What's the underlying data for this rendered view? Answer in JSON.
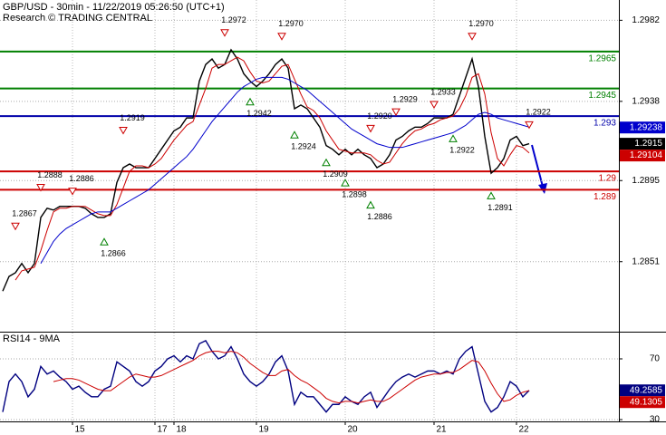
{
  "chart_data": [
    {
      "type": "line",
      "title": "GBP/USD - 30min - 11/22/2019 05:26:50 (UTC+1)",
      "subtitle": "Research © TRADING CENTRAL",
      "ylim": [
        1.2813,
        1.2993
      ],
      "yticks": [
        1.2851,
        1.2895,
        1.2938,
        1.2982
      ],
      "grid": true,
      "series": [
        {
          "color": "#000000",
          "values": [
            1.2835,
            1.2843,
            1.2845,
            1.285,
            1.2845,
            1.285,
            1.2875,
            1.288,
            1.2879,
            1.2881,
            1.2881,
            1.2881,
            1.2881,
            1.288,
            1.2877,
            1.2875,
            1.2875,
            1.2877,
            1.2894,
            1.2902,
            1.2904,
            1.2902,
            1.2902,
            1.2902,
            1.2907,
            1.2912,
            1.2917,
            1.2922,
            1.2924,
            1.2929,
            1.2929,
            1.2949,
            1.2958,
            1.2961,
            1.2956,
            1.2958,
            1.2966,
            1.2961,
            1.2953,
            1.2949,
            1.2946,
            1.2949,
            1.2953,
            1.2958,
            1.2961,
            1.2956,
            1.2934,
            1.2936,
            1.2934,
            1.2929,
            1.2924,
            1.2914,
            1.2912,
            1.2909,
            1.2912,
            1.2909,
            1.2912,
            1.2909,
            1.2907,
            1.2902,
            1.2904,
            1.2909,
            1.2917,
            1.2919,
            1.2922,
            1.2924,
            1.2924,
            1.2926,
            1.2929,
            1.2929,
            1.2929,
            1.2931,
            1.2941,
            1.2951,
            1.2961,
            1.2946,
            1.2919,
            1.2899,
            1.2902,
            1.2907,
            1.2917,
            1.2919,
            1.2914,
            1.2915
          ]
        },
        {
          "color": "#cc0000",
          "values": [
            null,
            null,
            1.2841,
            1.2846,
            1.2847,
            1.2848,
            1.2857,
            1.2868,
            1.2878,
            1.288,
            1.288,
            1.2881,
            1.2881,
            1.2881,
            1.2879,
            1.2877,
            1.2876,
            1.2876,
            1.2882,
            1.2891,
            1.29,
            1.2903,
            1.2903,
            1.2902,
            1.2904,
            1.2907,
            1.2912,
            1.2917,
            1.2921,
            1.2925,
            1.2927,
            1.2936,
            1.2945,
            1.2956,
            1.2958,
            1.2958,
            1.296,
            1.2962,
            1.296,
            1.2954,
            1.2949,
            1.2948,
            1.2949,
            1.2953,
            1.2957,
            1.2958,
            1.295,
            1.2942,
            1.2935,
            1.2933,
            1.2929,
            1.2922,
            1.2917,
            1.2912,
            1.2911,
            1.291,
            1.291,
            1.291,
            1.2909,
            1.2906,
            1.2904,
            1.2905,
            1.291,
            1.2915,
            1.2919,
            1.2922,
            1.2923,
            1.2925,
            1.2926,
            1.2928,
            1.2929,
            1.293,
            1.2934,
            1.2941,
            1.2951,
            1.2953,
            1.2942,
            1.2921,
            1.2907,
            1.2903,
            1.2909,
            1.2914,
            1.2913,
            1.291
          ]
        },
        {
          "color": "#0000cc",
          "values": [
            null,
            null,
            null,
            null,
            null,
            null,
            1.285,
            1.2856,
            1.2862,
            1.2866,
            1.2869,
            1.2871,
            1.2873,
            1.2875,
            1.2877,
            1.2878,
            1.2878,
            1.2878,
            1.288,
            1.2882,
            1.2884,
            1.2886,
            1.2888,
            1.289,
            1.2893,
            1.2896,
            1.2899,
            1.2902,
            1.2905,
            1.2908,
            1.2912,
            1.2917,
            1.2922,
            1.2927,
            1.2931,
            1.2935,
            1.2939,
            1.2943,
            1.2946,
            1.2948,
            1.295,
            1.2951,
            1.2951,
            1.2951,
            1.2951,
            1.295,
            1.2948,
            1.2946,
            1.2944,
            1.2941,
            1.2938,
            1.2935,
            1.2932,
            1.2929,
            1.2926,
            1.2923,
            1.2921,
            1.2919,
            1.2917,
            1.2915,
            1.2914,
            1.2913,
            1.2913,
            1.2913,
            1.2914,
            1.2915,
            1.2916,
            1.2917,
            1.2918,
            1.2919,
            1.292,
            1.2921,
            1.2923,
            1.2925,
            1.2928,
            1.2931,
            1.2932,
            1.2931,
            1.2929,
            1.2928,
            1.2927,
            1.2926,
            1.2925,
            1.2924
          ]
        }
      ],
      "levels": [
        {
          "value": 1.2965,
          "color": "#008000"
        },
        {
          "value": 1.2945,
          "color": "#008000"
        },
        {
          "value": 1.293,
          "color": "#0000aa"
        },
        {
          "value": 1.29,
          "color": "#cc0000"
        },
        {
          "value": 1.289,
          "color": "#cc0000"
        }
      ],
      "price_tags": [
        {
          "value": 1.29238,
          "color": "#0000cc"
        },
        {
          "value": 1.2915,
          "color": "#000000"
        },
        {
          "value": 1.29104,
          "color": "#cc0000"
        }
      ],
      "annotations": [
        {
          "index": 2,
          "kind": "high",
          "value": 1.2867
        },
        {
          "index": 6,
          "kind": "high",
          "value": 1.2888
        },
        {
          "index": 11,
          "kind": "high",
          "value": 1.2886
        },
        {
          "index": 19,
          "kind": "high",
          "value": 1.2919
        },
        {
          "index": 35,
          "kind": "high",
          "value": 1.2972
        },
        {
          "index": 44,
          "kind": "high",
          "value": {
            "value": 1.297,
            "label": "1.2970"
          }
        },
        {
          "index": 58,
          "kind": "high",
          "value": {
            "value": 1.292,
            "label": "1.2920"
          }
        },
        {
          "index": 62,
          "kind": "high",
          "value": 1.2929
        },
        {
          "index": 68,
          "kind": "high",
          "value": 1.2933
        },
        {
          "index": 74,
          "kind": "high",
          "value": {
            "value": 1.297,
            "label": "1.2970"
          }
        },
        {
          "index": 83,
          "kind": "high",
          "value": 1.2922
        },
        {
          "index": 16,
          "kind": "low",
          "value": 1.2866
        },
        {
          "index": 39,
          "kind": "low",
          "value": 1.2942
        },
        {
          "index": 46,
          "kind": "low",
          "value": 1.2924
        },
        {
          "index": 51,
          "kind": "low",
          "value": 1.2909
        },
        {
          "index": 54,
          "kind": "low",
          "value": 1.2898
        },
        {
          "index": 58,
          "kind": "low",
          "value": 1.2886
        },
        {
          "index": 71,
          "kind": "low",
          "value": 1.2922
        },
        {
          "index": 77,
          "kind": "low",
          "value": 1.2891
        }
      ]
    },
    {
      "type": "line",
      "title": "RSI14 - 9MA",
      "categories": [
        null,
        null,
        null,
        null,
        null,
        null,
        null,
        null,
        null,
        null,
        null,
        "15",
        null,
        null,
        null,
        null,
        null,
        null,
        null,
        null,
        null,
        null,
        null,
        null,
        "17",
        null,
        null,
        "18",
        null,
        null,
        null,
        null,
        null,
        null,
        null,
        null,
        null,
        null,
        null,
        null,
        "19",
        null,
        null,
        null,
        null,
        null,
        null,
        null,
        null,
        null,
        null,
        null,
        null,
        null,
        "20",
        null,
        null,
        null,
        null,
        null,
        null,
        null,
        null,
        null,
        null,
        null,
        null,
        null,
        "21",
        null,
        null,
        null,
        null,
        null,
        null,
        null,
        null,
        null,
        null,
        null,
        null,
        "22",
        null,
        null
      ],
      "ylim": [
        28.8,
        87.3
      ],
      "yticks": [
        30,
        70
      ],
      "series": [
        {
          "color": "#000080",
          "values": [
            35,
            55,
            60,
            55,
            45,
            50,
            65,
            60,
            62,
            58,
            55,
            50,
            52,
            48,
            45,
            45,
            50,
            52,
            68,
            65,
            62,
            55,
            52,
            55,
            62,
            65,
            70,
            72,
            68,
            72,
            70,
            80,
            82,
            75,
            70,
            72,
            78,
            70,
            60,
            55,
            52,
            55,
            60,
            68,
            72,
            62,
            40,
            48,
            45,
            45,
            40,
            35,
            40,
            40,
            45,
            42,
            40,
            45,
            48,
            38,
            44,
            50,
            55,
            58,
            60,
            58,
            60,
            62,
            62,
            60,
            62,
            60,
            70,
            75,
            78,
            60,
            42,
            35,
            38,
            45,
            55,
            52,
            45,
            49.2585
          ]
        },
        {
          "color": "#cc0000",
          "values": [
            null,
            null,
            null,
            null,
            null,
            null,
            null,
            null,
            55,
            56,
            57,
            57,
            56,
            54,
            52,
            50,
            49,
            49,
            52,
            55,
            58,
            60,
            59,
            58,
            58,
            59,
            61,
            63,
            65,
            67,
            69,
            72,
            74,
            75,
            75,
            74,
            75,
            74,
            71,
            67,
            64,
            61,
            59,
            59,
            62,
            63,
            59,
            56,
            54,
            51,
            48,
            44,
            42,
            41,
            42,
            42,
            41,
            42,
            43,
            42,
            42,
            44,
            47,
            50,
            53,
            56,
            58,
            59,
            60,
            60,
            61,
            61,
            63,
            66,
            69,
            68,
            62,
            54,
            47,
            42,
            43,
            46,
            48,
            49.1305
          ]
        }
      ],
      "price_tags": [
        {
          "value": 49.2585,
          "color": "#000080"
        },
        {
          "value": 49.1305,
          "color": "#cc0000"
        }
      ]
    }
  ]
}
